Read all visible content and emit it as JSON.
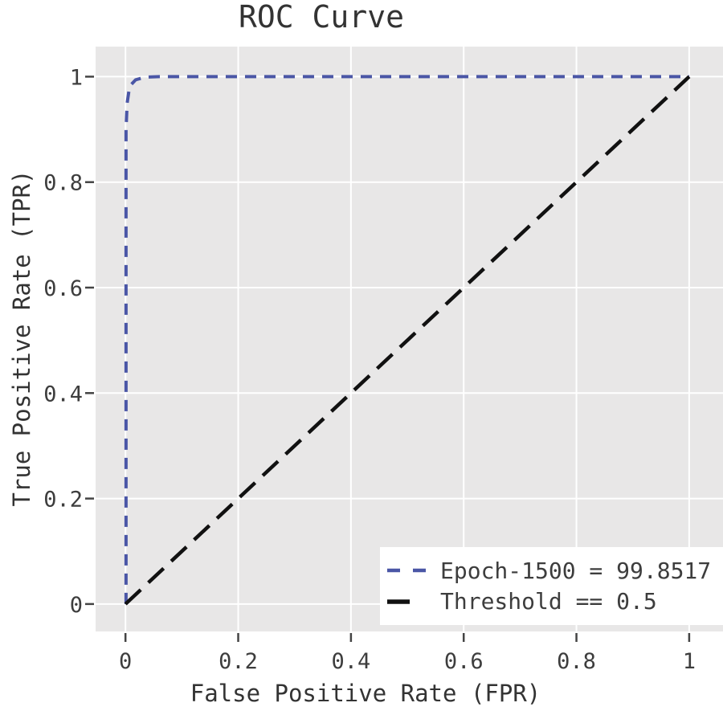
{
  "chart_data": {
    "type": "line",
    "title": "ROC Curve",
    "xlabel": "False Positive Rate (FPR)",
    "ylabel": "True Positive Rate (TPR)",
    "xticks": [
      0,
      0.2,
      0.4,
      0.6,
      0.8,
      1
    ],
    "yticks": [
      0,
      0.2,
      0.4,
      0.6,
      0.8,
      1
    ],
    "xtick_labels": [
      "0",
      "0.2",
      "0.4",
      "0.6",
      "0.8",
      "1"
    ],
    "ytick_labels": [
      "0",
      "0.2",
      "0.4",
      "0.6",
      "0.8",
      "1"
    ],
    "xlim": [
      -0.053,
      1.06
    ],
    "ylim": [
      -0.052,
      1.057
    ],
    "grid": true,
    "plot_background": "#e8e7e7",
    "gridline_color": "#ffffff",
    "tick_color": "#444444",
    "legend_position": "lower right",
    "series": [
      {
        "name": "Epoch-1500 = 99.8517",
        "color": "#4a56a6",
        "style": "dashed",
        "dash": [
          14,
          10
        ],
        "width": 4,
        "points": [
          [
            0.001,
            0.0
          ],
          [
            0.001,
            0.9
          ],
          [
            0.003,
            0.95
          ],
          [
            0.006,
            0.972
          ],
          [
            0.01,
            0.985
          ],
          [
            0.018,
            0.994
          ],
          [
            0.035,
            0.999
          ],
          [
            0.06,
            1.0
          ],
          [
            1.0,
            1.0
          ]
        ]
      },
      {
        "name": "Threshold == 0.5",
        "color": "#111111",
        "style": "dashed",
        "dash": [
          26,
          13
        ],
        "width": 4.5,
        "points": [
          [
            0.0,
            0.0
          ],
          [
            1.0,
            1.0
          ]
        ]
      }
    ]
  }
}
